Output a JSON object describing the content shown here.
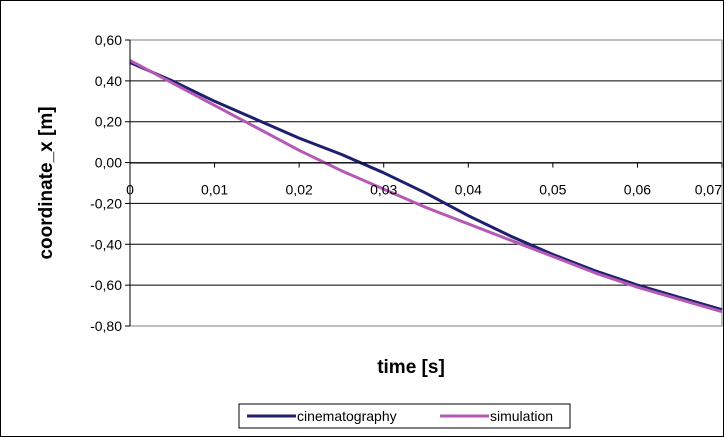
{
  "chart_data": {
    "type": "line",
    "title": "",
    "xlabel": "time [s]",
    "ylabel": "coordinate_x [m]",
    "xlim": [
      0,
      0.07
    ],
    "ylim": [
      -0.8,
      0.6
    ],
    "x_ticks": [
      {
        "value": 0,
        "label": "0"
      },
      {
        "value": 0.01,
        "label": "0,01"
      },
      {
        "value": 0.02,
        "label": "0,02"
      },
      {
        "value": 0.03,
        "label": "0,03"
      },
      {
        "value": 0.04,
        "label": "0,04"
      },
      {
        "value": 0.05,
        "label": "0,05"
      },
      {
        "value": 0.06,
        "label": "0,06"
      },
      {
        "value": 0.07,
        "label": "0,07"
      }
    ],
    "y_ticks": [
      {
        "value": 0.6,
        "label": "0,60"
      },
      {
        "value": 0.4,
        "label": "0,40"
      },
      {
        "value": 0.2,
        "label": "0,20"
      },
      {
        "value": 0.0,
        "label": "0,00"
      },
      {
        "value": -0.2,
        "label": "-0,20"
      },
      {
        "value": -0.4,
        "label": "-0,40"
      },
      {
        "value": -0.6,
        "label": "-0,60"
      },
      {
        "value": -0.8,
        "label": "-0,80"
      }
    ],
    "grid": "horizontal",
    "plot_background": "#ffffff",
    "legend_position": "bottom",
    "series": [
      {
        "name": "cinematography",
        "color": "#1e1f6e",
        "x": [
          0,
          0.005,
          0.01,
          0.015,
          0.02,
          0.025,
          0.03,
          0.035,
          0.04,
          0.045,
          0.05,
          0.055,
          0.06,
          0.065,
          0.07
        ],
        "y": [
          0.49,
          0.4,
          0.3,
          0.21,
          0.12,
          0.04,
          -0.05,
          -0.15,
          -0.26,
          -0.36,
          -0.45,
          -0.53,
          -0.6,
          -0.66,
          -0.72
        ]
      },
      {
        "name": "simulation",
        "color": "#b45ab4",
        "x": [
          0,
          0.005,
          0.01,
          0.015,
          0.02,
          0.025,
          0.03,
          0.035,
          0.04,
          0.045,
          0.05,
          0.055,
          0.06,
          0.065,
          0.07
        ],
        "y": [
          0.5,
          0.39,
          0.28,
          0.17,
          0.06,
          -0.04,
          -0.13,
          -0.22,
          -0.3,
          -0.38,
          -0.46,
          -0.54,
          -0.61,
          -0.67,
          -0.73
        ]
      }
    ]
  }
}
